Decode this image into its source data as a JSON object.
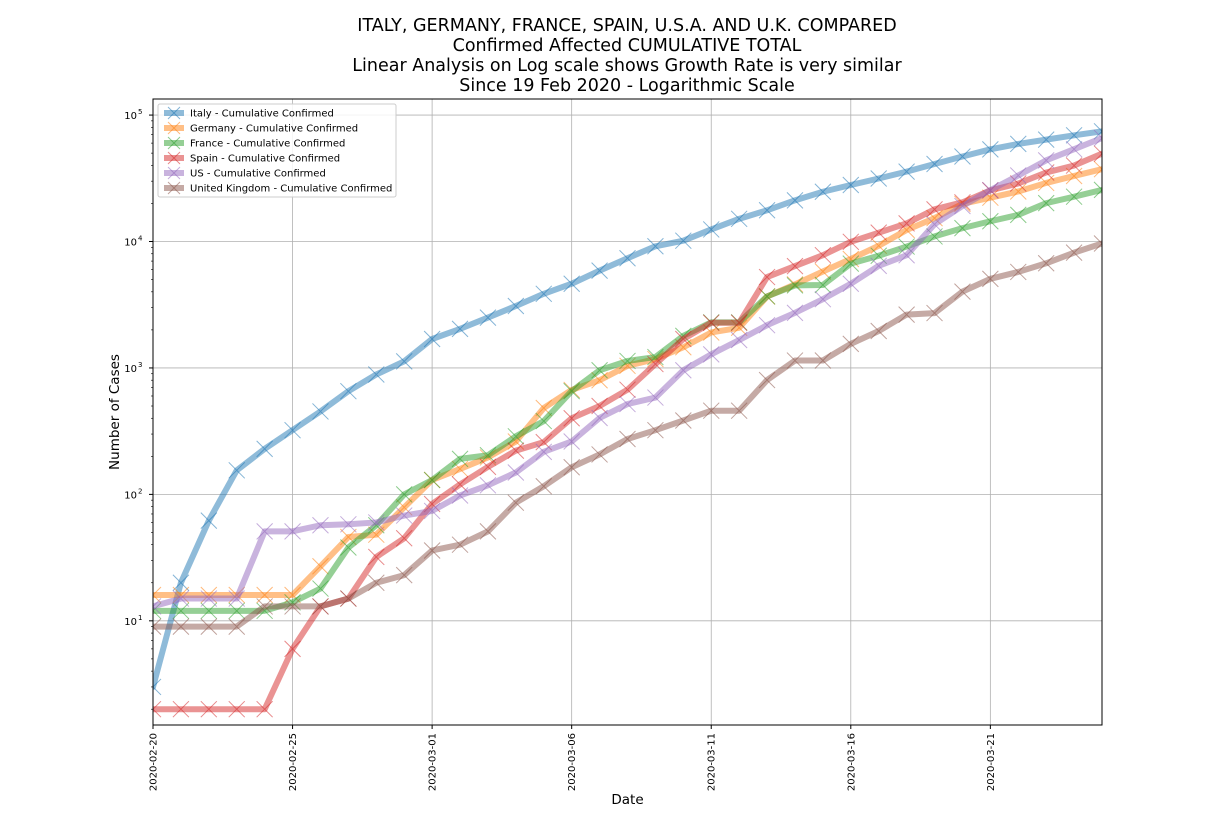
{
  "chart_data": {
    "type": "line",
    "title_lines": [
      "ITALY, GERMANY, FRANCE, SPAIN, U.S.A. AND U.K. COMPARED",
      "Confirmed Affected CUMULATIVE TOTAL",
      "Linear Analysis on Log scale shows Growth Rate is very similar",
      "Since 19 Feb 2020 - Logarithmic Scale"
    ],
    "xlabel": "Date",
    "ylabel": "Number of Cases",
    "yscale": "log",
    "grid": true,
    "legend_position": "top-left",
    "x": [
      "2020-02-20",
      "2020-02-21",
      "2020-02-22",
      "2020-02-23",
      "2020-02-24",
      "2020-02-25",
      "2020-02-26",
      "2020-02-27",
      "2020-02-28",
      "2020-02-29",
      "2020-03-01",
      "2020-03-02",
      "2020-03-03",
      "2020-03-04",
      "2020-03-05",
      "2020-03-06",
      "2020-03-07",
      "2020-03-08",
      "2020-03-09",
      "2020-03-10",
      "2020-03-11",
      "2020-03-12",
      "2020-03-13",
      "2020-03-14",
      "2020-03-15",
      "2020-03-16",
      "2020-03-17",
      "2020-03-18",
      "2020-03-19",
      "2020-03-20",
      "2020-03-21",
      "2020-03-22",
      "2020-03-23",
      "2020-03-24",
      "2020-03-25"
    ],
    "xlim": [
      "2020-02-20",
      "2020-03-25"
    ],
    "x_ticks": [
      "2020-02-20",
      "2020-02-25",
      "2020-03-01",
      "2020-03-06",
      "2020-03-11",
      "2020-03-16",
      "2020-03-21"
    ],
    "y_ticks": [
      {
        "value": 10,
        "base": "10",
        "exp": "1"
      },
      {
        "value": 100,
        "base": "10",
        "exp": "2"
      },
      {
        "value": 1000,
        "base": "10",
        "exp": "3"
      },
      {
        "value": 10000,
        "base": "10",
        "exp": "4"
      },
      {
        "value": 100000,
        "base": "10",
        "exp": "5"
      }
    ],
    "series": [
      {
        "name": "Italy - Cumulative Confirmed",
        "color": "#1f77b4",
        "values": [
          3,
          20,
          62,
          155,
          229,
          322,
          453,
          655,
          888,
          1128,
          1694,
          2036,
          2502,
          3089,
          3858,
          4636,
          5883,
          7375,
          9172,
          10149,
          12462,
          15113,
          17660,
          21157,
          24747,
          27980,
          31506,
          35713,
          41035,
          47021,
          53578,
          59138,
          63927,
          69176,
          74386
        ]
      },
      {
        "name": "Germany - Cumulative Confirmed",
        "color": "#ff7f0e",
        "values": [
          16,
          16,
          16,
          16,
          16,
          16,
          27,
          46,
          48,
          79,
          130,
          159,
          196,
          262,
          482,
          670,
          799,
          1040,
          1176,
          1457,
          1908,
          2078,
          3675,
          4585,
          5795,
          7272,
          9257,
          12327,
          15320,
          19848,
          22213,
          24873,
          29056,
          32986,
          37323
        ]
      },
      {
        "name": "France - Cumulative Confirmed",
        "color": "#2ca02c",
        "values": [
          12,
          12,
          12,
          12,
          12,
          14,
          18,
          38,
          57,
          100,
          130,
          191,
          204,
          288,
          380,
          656,
          959,
          1136,
          1219,
          1794,
          2293,
          2293,
          3681,
          4496,
          4532,
          6683,
          7715,
          9124,
          10970,
          12758,
          14463,
          16243,
          20123,
          22622,
          25600
        ]
      },
      {
        "name": "Spain - Cumulative Confirmed",
        "color": "#d62728",
        "values": [
          2,
          2,
          2,
          2,
          2,
          6,
          13,
          15,
          32,
          45,
          84,
          120,
          165,
          222,
          259,
          400,
          500,
          673,
          1073,
          1695,
          2277,
          2277,
          5232,
          6391,
          7798,
          9942,
          11748,
          13910,
          17963,
          20410,
          25374,
          28768,
          35136,
          39885,
          49515
        ]
      },
      {
        "name": "US - Cumulative Confirmed",
        "color": "#9467bd",
        "values": [
          13,
          15,
          15,
          15,
          51,
          51,
          57,
          58,
          60,
          68,
          74,
          98,
          118,
          149,
          217,
          262,
          402,
          518,
          583,
          959,
          1281,
          1663,
          2179,
          2727,
          3499,
          4632,
          6421,
          7786,
          13680,
          19101,
          25493,
          33276,
          43847,
          53740,
          65778
        ]
      },
      {
        "name": "United Kingdom - Cumulative Confirmed",
        "color": "#8c564b",
        "values": [
          9,
          9,
          9,
          9,
          13,
          13,
          13,
          15,
          20,
          23,
          36,
          40,
          51,
          86,
          116,
          164,
          207,
          274,
          322,
          384,
          459,
          459,
          802,
          1144,
          1145,
          1551,
          1960,
          2642,
          2716,
          4014,
          5067,
          5745,
          6726,
          8164,
          9640
        ]
      }
    ]
  }
}
